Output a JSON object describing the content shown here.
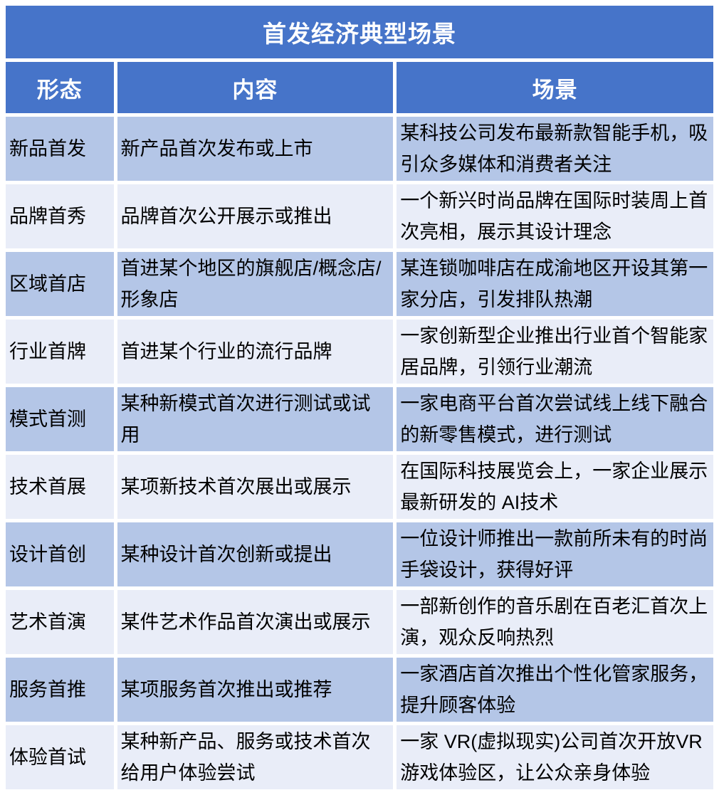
{
  "chart_data": {
    "type": "table",
    "title": "首发经济典型场景",
    "columns": [
      "形态",
      "内容",
      "场景"
    ],
    "rows": [
      {
        "form": "新品首发",
        "content": "新产品首次发布或上市",
        "scenario": "某科技公司发布最新款智能手机，吸引众多媒体和消费者关注"
      },
      {
        "form": "品牌首秀",
        "content": "品牌首次公开展示或推出",
        "scenario": "一个新兴时尚品牌在国际时装周上首次亮相，展示其设计理念"
      },
      {
        "form": "区域首店",
        "content": "首进某个地区的旗舰店/概念店/形象店",
        "scenario": "某连锁咖啡店在成渝地区开设其第一家分店，引发排队热潮"
      },
      {
        "form": "行业首牌",
        "content": "首进某个行业的流行品牌",
        "scenario": "一家创新型企业推出行业首个智能家居品牌，引领行业潮流"
      },
      {
        "form": "模式首测",
        "content": "某种新模式首次进行测试或试用",
        "scenario": "一家电商平台首次尝试线上线下融合的新零售模式，进行测试"
      },
      {
        "form": "技术首展",
        "content": "某项新技术首次展出或展示",
        "scenario": "在国际科技展览会上，一家企业展示最新研发的 AI技术"
      },
      {
        "form": "设计首创",
        "content": "某种设计首次创新或提出",
        "scenario": "一位设计师推出一款前所未有的时尚手袋设计，获得好评"
      },
      {
        "form": "艺术首演",
        "content": "某件艺术作品首次演出或展示",
        "scenario": "一部新创作的音乐剧在百老汇首次上演，观众反响热烈"
      },
      {
        "form": "服务首推",
        "content": "某项服务首次推出或推荐",
        "scenario": "一家酒店首次推出个性化管家服务，提升顾客体验"
      },
      {
        "form": "体验首试",
        "content": "某种新产品、服务或技术首次给用户体验尝试",
        "scenario": "一家 VR(虚拟现实)公司首次开放VR游戏体验区，让公众亲身体验"
      }
    ],
    "layout": {
      "legend": "none",
      "grid": "white-gaps-between-cells",
      "banding": "alternating-rows"
    },
    "colors": {
      "header_bg": "#4674C9",
      "header_text": "#FFFFFF",
      "row_odd_bg": "#B4C6E7",
      "row_even_bg": "#E9EDF8",
      "body_text": "#000000",
      "gap": "#FFFFFF"
    }
  }
}
